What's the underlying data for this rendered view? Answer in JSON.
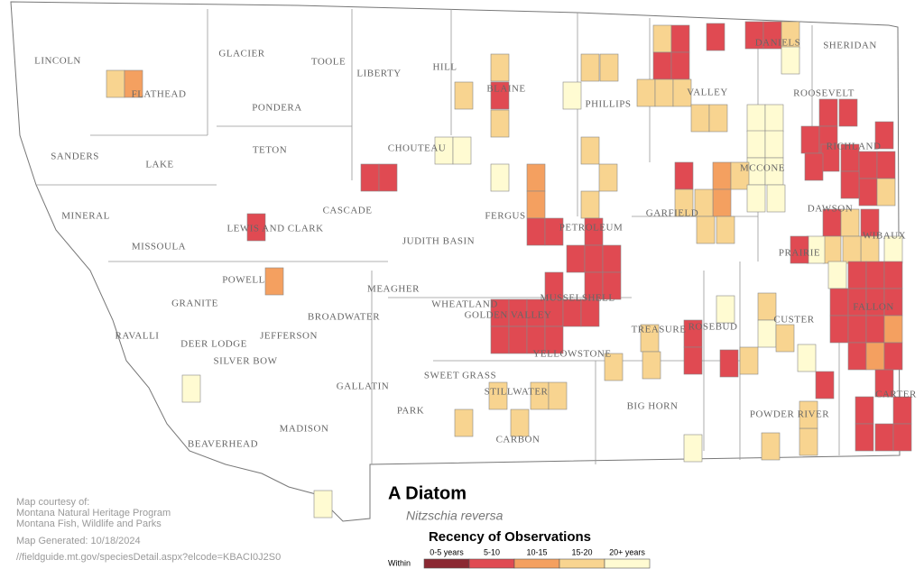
{
  "map": {
    "title": "A Diatom",
    "subtitle": "Nitzschia reversa",
    "counties": [
      "LINCOLN",
      "GLACIER",
      "TOOLE",
      "LIBERTY",
      "HILL",
      "SHERIDAN",
      "DANIELS",
      "BLAINE",
      "VALLEY",
      "FLATHEAD",
      "PONDERA",
      "PHILLIPS",
      "ROOSEVELT",
      "TETON",
      "CHOUTEAU",
      "RICHLAND",
      "SANDERS",
      "LAKE",
      "MCCONE",
      "GARFIELD",
      "FERGUS",
      "CASCADE",
      "MINERAL",
      "DAWSON",
      "LEWIS AND CLARK",
      "PETROLEUM",
      "WIBAUX",
      "JUDITH BASIN",
      "MISSOULA",
      "PRAIRIE",
      "POWELL",
      "MEAGHER",
      "WHEATLAND",
      "GOLDEN VALLEY",
      "MUSSELSHELL",
      "GRANITE",
      "BROADWATER",
      "CUSTER",
      "FALLON",
      "TREASURE",
      "ROSEBUD",
      "RAVALLI",
      "JEFFERSON",
      "DEER LODGE",
      "YELLOWSTONE",
      "SILVER BOW",
      "SWEET GRASS",
      "GALLATIN",
      "STILLWATER",
      "CARTER",
      "BIG HORN",
      "PARK",
      "POWDER RIVER",
      "MADISON",
      "CARBON",
      "BEAVERHEAD"
    ],
    "legend": {
      "title": "Recency of Observations",
      "prefix": "Within",
      "items": [
        {
          "label": "0-5 years",
          "color": "#8b2832"
        },
        {
          "label": "5-10",
          "color": "#e04a52"
        },
        {
          "label": "10-15",
          "color": "#f4a060"
        },
        {
          "label": "15-20",
          "color": "#f8d490"
        },
        {
          "label": "20+ years",
          "color": "#fffbd2"
        }
      ]
    },
    "credits": [
      "Map courtesy of:",
      "Montana Natural Heritage Program",
      "Montana Fish, Wildlife and Parks"
    ],
    "generated": "Map Generated: 10/18/2024",
    "url": "//fieldguide.mt.gov/speciesDetail.aspx?elcode=KBACI0J2S0"
  }
}
